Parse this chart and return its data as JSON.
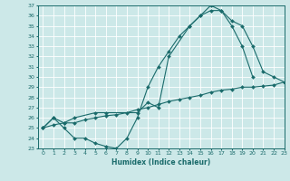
{
  "xlabel": "Humidex (Indice chaleur)",
  "bg_color": "#cce8e8",
  "line_color": "#1a6b6b",
  "grid_color": "#ffffff",
  "ylim": [
    23,
    37
  ],
  "xlim": [
    -0.5,
    23
  ],
  "yticks": [
    23,
    24,
    25,
    26,
    27,
    28,
    29,
    30,
    31,
    32,
    33,
    34,
    35,
    36,
    37
  ],
  "xticks": [
    0,
    1,
    2,
    3,
    4,
    5,
    6,
    7,
    8,
    9,
    10,
    11,
    12,
    13,
    14,
    15,
    16,
    17,
    18,
    19,
    20,
    21,
    22,
    23
  ],
  "line1_x": [
    0,
    1,
    2,
    3,
    4,
    5,
    6,
    7,
    8,
    9,
    10,
    11,
    12,
    13,
    14,
    15,
    16,
    17,
    18,
    19,
    20
  ],
  "line1_y": [
    25,
    26,
    25,
    24,
    24,
    23.5,
    23.2,
    23,
    24,
    26,
    29,
    31,
    32.5,
    34,
    35,
    36,
    37,
    36.5,
    35,
    33,
    30
  ],
  "line2_x": [
    0,
    1,
    2,
    3,
    5,
    6,
    9,
    10,
    11,
    12,
    14,
    15,
    16,
    17,
    18,
    19,
    20,
    21,
    22,
    23
  ],
  "line2_y": [
    25,
    26,
    25.5,
    26,
    26.5,
    26.5,
    26.5,
    27.5,
    27,
    32,
    35,
    36,
    36.5,
    36.5,
    35.5,
    35,
    33,
    30.5,
    30,
    29.5
  ],
  "line3_x": [
    0,
    1,
    2,
    3,
    4,
    5,
    6,
    7,
    8,
    9,
    10,
    11,
    12,
    13,
    14,
    15,
    16,
    17,
    18,
    19,
    20,
    21,
    22,
    23
  ],
  "line3_y": [
    25,
    25.3,
    25.5,
    25.5,
    25.8,
    26,
    26.2,
    26.3,
    26.5,
    26.8,
    27,
    27.3,
    27.6,
    27.8,
    28,
    28.2,
    28.5,
    28.7,
    28.8,
    29,
    29,
    29.1,
    29.2,
    29.5
  ]
}
